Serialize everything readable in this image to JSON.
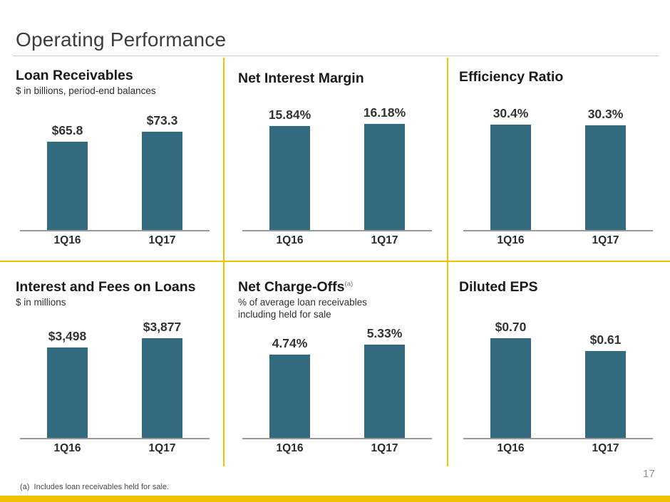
{
  "page": {
    "title": "Operating Performance",
    "footnote": "(a)  Includes loan receivables held for sale.",
    "page_number": "17"
  },
  "theme": {
    "bar_color": "#336A80",
    "accent_gold": "#F2C101",
    "axis_color": "#999999"
  },
  "chart_data": [
    {
      "type": "bar",
      "title": "Loan Receivables",
      "title_superscript": "",
      "subtitle": "$ in billions, period-end balances",
      "categories": [
        "1Q16",
        "1Q17"
      ],
      "values": [
        65.8,
        73.3
      ],
      "labels": [
        "$65.8",
        "$73.3"
      ],
      "ylim": [
        0,
        90
      ],
      "grid": false,
      "legend": false
    },
    {
      "type": "bar",
      "title": "Net Interest Margin",
      "title_superscript": "",
      "subtitle": "",
      "categories": [
        "1Q16",
        "1Q17"
      ],
      "values": [
        15.84,
        16.18
      ],
      "labels": [
        "15.84%",
        "16.18%"
      ],
      "ylim": [
        0,
        18.5
      ],
      "grid": false,
      "legend": false
    },
    {
      "type": "bar",
      "title": "Efficiency Ratio",
      "title_superscript": "",
      "subtitle": "",
      "categories": [
        "1Q16",
        "1Q17"
      ],
      "values": [
        30.4,
        30.3
      ],
      "labels": [
        "30.4%",
        "30.3%"
      ],
      "ylim": [
        0,
        35
      ],
      "grid": false,
      "legend": false
    },
    {
      "type": "bar",
      "title": "Interest and Fees on Loans",
      "title_superscript": "",
      "subtitle": "$ in millions",
      "categories": [
        "1Q16",
        "1Q17"
      ],
      "values": [
        3498,
        3877
      ],
      "labels": [
        "$3,498",
        "$3,877"
      ],
      "ylim": [
        0,
        4700
      ],
      "grid": false,
      "legend": false
    },
    {
      "type": "bar",
      "title": "Net Charge-Offs",
      "title_superscript": "(a)",
      "subtitle": "% of average loan receivables including held for sale",
      "categories": [
        "1Q16",
        "1Q17"
      ],
      "values": [
        4.74,
        5.33
      ],
      "labels": [
        "4.74%",
        "5.33%"
      ],
      "ylim": [
        0,
        6.9
      ],
      "grid": false,
      "legend": false
    },
    {
      "type": "bar",
      "title": "Diluted EPS",
      "title_superscript": "",
      "subtitle": "",
      "categories": [
        "1Q16",
        "1Q17"
      ],
      "values": [
        0.7,
        0.61
      ],
      "labels": [
        "$0.70",
        "$0.61"
      ],
      "ylim": [
        0,
        0.85
      ],
      "grid": false,
      "legend": false
    }
  ]
}
